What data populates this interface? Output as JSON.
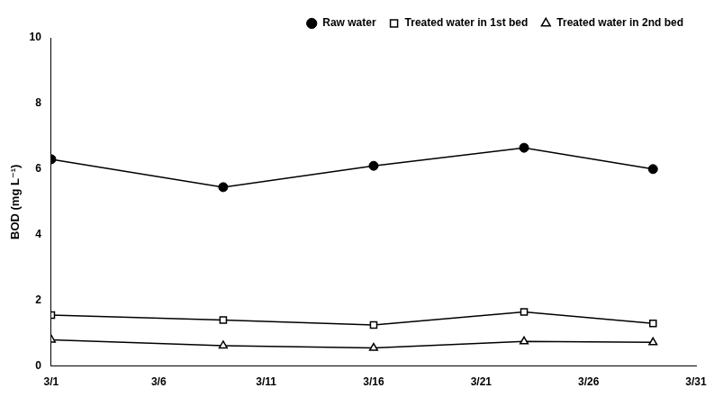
{
  "chart_data": {
    "type": "line",
    "ylabel": "BOD (mg L⁻¹)",
    "series": [
      {
        "name": "Raw water",
        "color": "#000000",
        "marker": "filled circle",
        "x": [
          1,
          9,
          16,
          23,
          29
        ],
        "values": [
          6.3,
          5.45,
          6.1,
          6.65,
          6.0
        ]
      },
      {
        "name": "Treated water in 1st bed",
        "color": "#000000",
        "marker": "open square",
        "x": [
          1,
          9,
          16,
          23,
          29
        ],
        "values": [
          1.55,
          1.4,
          1.25,
          1.65,
          1.3
        ]
      },
      {
        "name": "Treated water in 2nd bed",
        "color": "#000000",
        "marker": "open triangle",
        "x": [
          1,
          9,
          16,
          23,
          29
        ],
        "values": [
          0.8,
          0.62,
          0.55,
          0.75,
          0.72
        ]
      }
    ],
    "xlim": [
      1,
      31
    ],
    "xticks": [
      {
        "value": 1,
        "label": "3/1"
      },
      {
        "value": 6,
        "label": "3/6"
      },
      {
        "value": 11,
        "label": "3/11"
      },
      {
        "value": 16,
        "label": "3/16"
      },
      {
        "value": 21,
        "label": "3/21"
      },
      {
        "value": 26,
        "label": "3/26"
      },
      {
        "value": 31,
        "label": "3/31"
      }
    ],
    "ylim": [
      0,
      10
    ],
    "yticks": [
      0,
      2,
      4,
      6,
      8,
      10
    ],
    "grid": false,
    "legend": "upper right"
  }
}
